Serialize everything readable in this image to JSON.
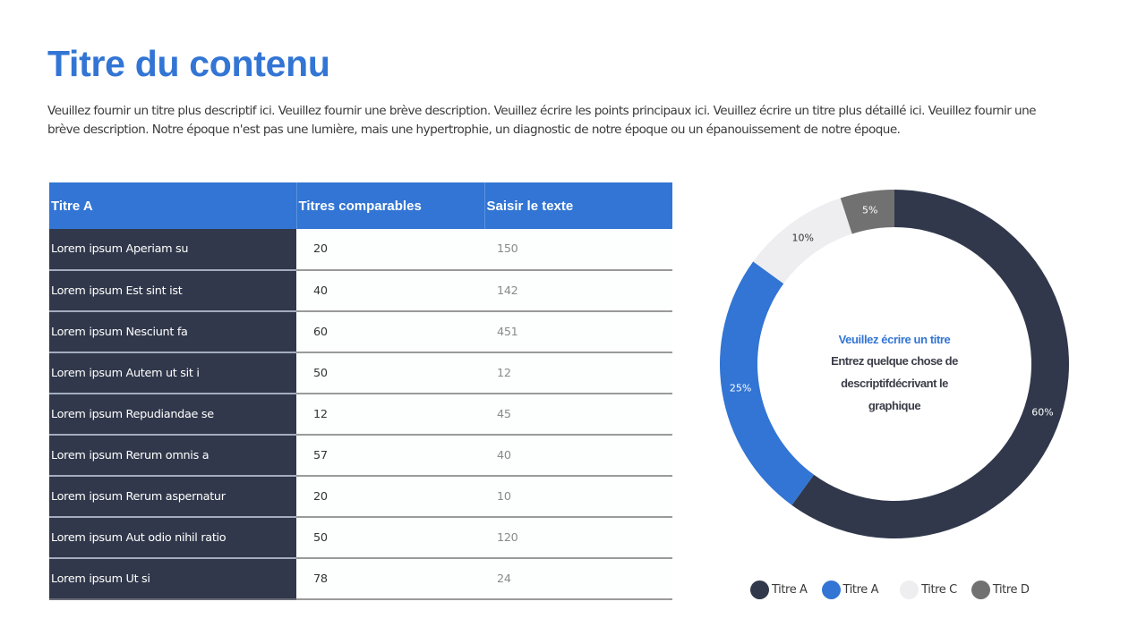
{
  "header": {
    "title": "Titre du contenu",
    "description": "Veuillez fournir un titre plus descriptif ici. Veuillez fournir une brève description. Veuillez écrire les points principaux ici. Veuillez écrire un titre plus détaillé ici. Veuillez fournir une brève description. Notre époque n'est pas une lumière, mais une hypertrophie, un diagnostic de notre époque ou un épanouissement de notre époque."
  },
  "table": {
    "columns": [
      "Titre A",
      "Titres comparables",
      "Saisir le texte"
    ],
    "rows": [
      [
        "Lorem ipsum Aperiam su",
        "20",
        "150"
      ],
      [
        "Lorem ipsum Est sint ist",
        "40",
        "142"
      ],
      [
        "Lorem ipsum Nesciunt fa",
        "60",
        "451"
      ],
      [
        "Lorem ipsum Autem ut sit i",
        "50",
        "12"
      ],
      [
        "Lorem ipsum Repudiandae se",
        "12",
        "45"
      ],
      [
        "Lorem ipsum Rerum omnis a",
        "57",
        "40"
      ],
      [
        "Lorem ipsum Rerum aspernatur",
        "20",
        "10"
      ],
      [
        "Lorem ipsum Aut odio nihil ratio",
        "50",
        "120"
      ],
      [
        "Lorem ipsum Ut si",
        "78",
        "24"
      ]
    ]
  },
  "donut": {
    "center_title": "Veuillez écrire un titre",
    "center_body": "Entrez quelque chose de descriptifdécrivant le graphique",
    "center_body_lines": [
      "Entrez quelque chose de",
      "descriptifdécrivant le",
      "graphique"
    ]
  },
  "colors": {
    "accent": "#3275d4",
    "dark": "#31384b",
    "light": "#eeeef0",
    "gray": "#717171"
  },
  "chart_data": {
    "type": "pie",
    "variant": "donut",
    "title": "Veuillez écrire un titre",
    "subtitle": "Entrez quelque chose de descriptifdécrivant le graphique",
    "categories": [
      "Titre A",
      "Titre A",
      "Titre C",
      "Titre D"
    ],
    "values": [
      60,
      25,
      10,
      5
    ],
    "labels": [
      "60%",
      "25%",
      "10%",
      "5%"
    ],
    "colors": [
      "#31384b",
      "#3275d4",
      "#eeeef0",
      "#717171"
    ],
    "label_colors": [
      "#ffffff",
      "#ffffff",
      "#333333",
      "#ffffff"
    ],
    "start_angle": "top, clockwise",
    "legend_position": "bottom"
  }
}
